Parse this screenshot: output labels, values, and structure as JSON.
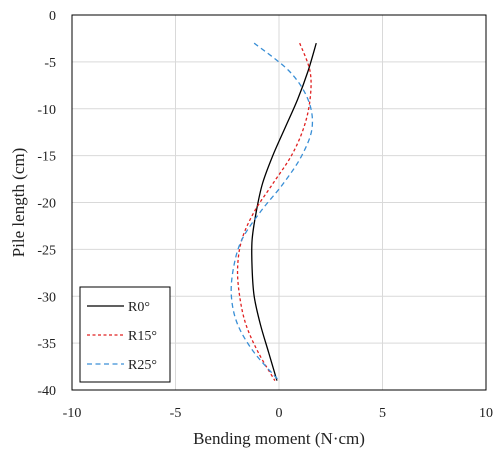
{
  "chart_data": {
    "type": "line",
    "xlabel": "Bending moment (N·cm)",
    "ylabel": "Pile length (cm)",
    "xlim": [
      -10,
      10
    ],
    "ylim": [
      -40,
      0
    ],
    "x_ticks": [
      -10,
      -5,
      0,
      5,
      10
    ],
    "y_ticks": [
      0,
      -5,
      -10,
      -15,
      -20,
      -25,
      -30,
      -35,
      -40
    ],
    "grid": true,
    "legend_position": "bottom-left",
    "series": [
      {
        "name": "R0°",
        "color": "#000000",
        "dash": "solid",
        "x": [
          1.8,
          1.4,
          0.9,
          0.3,
          -0.3,
          -0.8,
          -1.1,
          -1.3,
          -1.3,
          -1.2,
          -0.9,
          -0.5,
          -0.1
        ],
        "y": [
          -3,
          -6,
          -9,
          -12,
          -15,
          -18,
          -21,
          -24,
          -27,
          -30,
          -33,
          -36,
          -39
        ]
      },
      {
        "name": "R15°",
        "color": "#e02020",
        "dash": "dotted",
        "x": [
          1.0,
          1.5,
          1.5,
          1.2,
          0.6,
          -0.3,
          -1.2,
          -1.8,
          -2.0,
          -1.9,
          -1.6,
          -1.0,
          -0.2
        ],
        "y": [
          -3,
          -6,
          -9,
          -12,
          -15,
          -18,
          -21,
          -24,
          -27,
          -30,
          -33,
          -36,
          -39
        ]
      },
      {
        "name": "R25°",
        "color": "#3a8fd6",
        "dash": "dashed",
        "x": [
          -1.2,
          0.5,
          1.4,
          1.6,
          1.1,
          0.2,
          -0.9,
          -1.8,
          -2.2,
          -2.3,
          -2.0,
          -1.2,
          0.0
        ],
        "y": [
          -3,
          -6,
          -9,
          -12,
          -15,
          -18,
          -21,
          -24,
          -27,
          -30,
          -33,
          -36,
          -39
        ]
      }
    ]
  }
}
